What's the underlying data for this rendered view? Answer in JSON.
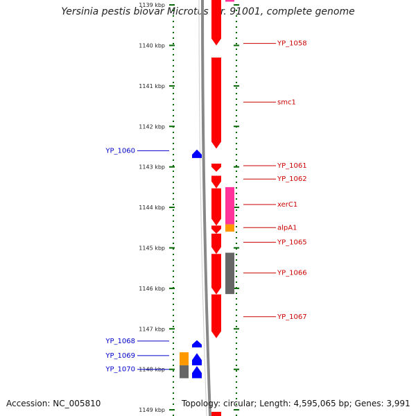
{
  "title": "Yersinia pestis biovar Microtus str. 91001, complete genome",
  "footer": {
    "accession_label": "Accession:",
    "accession": "NC_005810",
    "topology_label": "Topology:",
    "topology": "circular",
    "length_label": "Length:",
    "length": "4,595,065 bp",
    "genes_label": "Genes:",
    "genes": "3,991"
  },
  "scale": {
    "unit": "kbp",
    "ticks": [
      {
        "kbp": 1139,
        "label": "1139 kbp"
      },
      {
        "kbp": 1140,
        "label": "1140 kbp"
      },
      {
        "kbp": 1141,
        "label": "1141 kbp"
      },
      {
        "kbp": 1142,
        "label": "1142 kbp"
      },
      {
        "kbp": 1143,
        "label": "1143 kbp"
      },
      {
        "kbp": 1144,
        "label": "1144 kbp"
      },
      {
        "kbp": 1145,
        "label": "1145 kbp"
      },
      {
        "kbp": 1146,
        "label": "1146 kbp"
      },
      {
        "kbp": 1147,
        "label": "1147 kbp"
      },
      {
        "kbp": 1148,
        "label": "1148 kbp"
      },
      {
        "kbp": 1149,
        "label": "1149 kbp"
      }
    ]
  },
  "colors": {
    "forward_cds": "#ff0000",
    "reverse_cds": "#0000ff",
    "magenta_feature": "#ff3399",
    "orange_feature": "#ff9900",
    "gray_feature": "#666666",
    "axis": "#888888",
    "tick": "#006600",
    "forward_label": "#cc0000",
    "reverse_label": "#0000cc"
  },
  "labels": {
    "forward": [
      {
        "name": "YP_1058",
        "kbp": 1139.95
      },
      {
        "name": "smc1",
        "kbp": 1141.4
      },
      {
        "name": "YP_1061",
        "kbp": 1142.97
      },
      {
        "name": "YP_1062",
        "kbp": 1143.3
      },
      {
        "name": "xerC1",
        "kbp": 1143.93
      },
      {
        "name": "alpA1",
        "kbp": 1144.5
      },
      {
        "name": "YP_1065",
        "kbp": 1144.86
      },
      {
        "name": "YP_1066",
        "kbp": 1145.62
      },
      {
        "name": "YP_1067",
        "kbp": 1146.7
      }
    ],
    "reverse": [
      {
        "name": "YP_1060",
        "kbp": 1142.6
      },
      {
        "name": "YP_1068",
        "kbp": 1147.3
      },
      {
        "name": "YP_1069",
        "kbp": 1147.66
      },
      {
        "name": "YP_1070",
        "kbp": 1148.0
      }
    ]
  },
  "features": [
    {
      "track": "fwd_cds",
      "start": 1138.7,
      "end": 1140.0,
      "dir": 1
    },
    {
      "track": "fwd_cds",
      "start": 1140.3,
      "end": 1142.55,
      "dir": 1
    },
    {
      "track": "fwd_cds",
      "start": 1142.92,
      "end": 1143.12,
      "dir": 1
    },
    {
      "track": "fwd_cds",
      "start": 1143.22,
      "end": 1143.53,
      "dir": 1
    },
    {
      "track": "fwd_cds",
      "start": 1143.53,
      "end": 1144.45,
      "dir": 1
    },
    {
      "track": "fwd_cds",
      "start": 1144.45,
      "end": 1144.65,
      "dir": 1
    },
    {
      "track": "fwd_cds",
      "start": 1144.65,
      "end": 1145.15,
      "dir": 1
    },
    {
      "track": "fwd_cds",
      "start": 1145.15,
      "end": 1146.15,
      "dir": 1
    },
    {
      "track": "fwd_cds",
      "start": 1146.15,
      "end": 1147.23,
      "dir": 1
    },
    {
      "track": "fwd_cds",
      "start": 1149.05,
      "end": 1149.4,
      "dir": 1
    },
    {
      "track": "fwd_other",
      "start": 1138.7,
      "end": 1138.92,
      "color": "magenta"
    },
    {
      "track": "fwd_other",
      "start": 1143.5,
      "end": 1144.42,
      "color": "magenta"
    },
    {
      "track": "fwd_other",
      "start": 1144.42,
      "end": 1144.6,
      "color": "orange"
    },
    {
      "track": "fwd_other",
      "start": 1145.12,
      "end": 1146.14,
      "color": "gray"
    },
    {
      "track": "rev_cds",
      "start": 1142.57,
      "end": 1142.78,
      "dir": -1
    },
    {
      "track": "rev_cds",
      "start": 1147.28,
      "end": 1147.46,
      "dir": -1
    },
    {
      "track": "rev_cds",
      "start": 1147.6,
      "end": 1147.9,
      "dir": -1
    },
    {
      "track": "rev_cds",
      "start": 1147.92,
      "end": 1148.22,
      "dir": -1
    },
    {
      "track": "rev_other",
      "start": 1147.58,
      "end": 1147.9,
      "color": "orange"
    },
    {
      "track": "rev_other",
      "start": 1147.9,
      "end": 1148.22,
      "color": "gray"
    }
  ]
}
